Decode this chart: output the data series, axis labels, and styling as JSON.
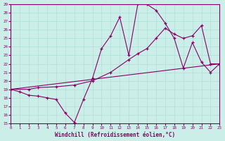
{
  "xlabel": "Windchill (Refroidissement éolien,°C)",
  "bg_color": "#cceee8",
  "line_color": "#880066",
  "xlim": [
    0,
    23
  ],
  "ylim": [
    15,
    29
  ],
  "xticks": [
    0,
    1,
    2,
    3,
    4,
    5,
    6,
    7,
    8,
    9,
    10,
    11,
    12,
    13,
    14,
    15,
    16,
    17,
    18,
    19,
    20,
    21,
    22,
    23
  ],
  "yticks": [
    15,
    16,
    17,
    18,
    19,
    20,
    21,
    22,
    23,
    24,
    25,
    26,
    27,
    28,
    29
  ],
  "series": [
    {
      "x": [
        0,
        1,
        2,
        3,
        4,
        5,
        6,
        7,
        8,
        9,
        10,
        11,
        12,
        13,
        14,
        15,
        16,
        17,
        18,
        19,
        20,
        21,
        22,
        23
      ],
      "y": [
        19.0,
        18.7,
        18.3,
        18.2,
        18.0,
        17.8,
        16.2,
        15.1,
        17.8,
        20.3,
        23.8,
        25.3,
        27.5,
        23.0,
        29.1,
        29.0,
        28.3,
        26.8,
        25.0,
        21.5,
        24.5,
        22.2,
        21.0,
        22.0
      ]
    },
    {
      "x": [
        0,
        2,
        3,
        5,
        7,
        9,
        11,
        13,
        14,
        15,
        16,
        17,
        18,
        19,
        20,
        21,
        22,
        23
      ],
      "y": [
        19.0,
        19.0,
        19.2,
        19.3,
        19.5,
        20.0,
        21.0,
        22.5,
        23.2,
        23.8,
        25.0,
        26.2,
        25.5,
        25.0,
        25.3,
        26.5,
        22.0,
        22.0
      ]
    },
    {
      "x": [
        0,
        23
      ],
      "y": [
        19.0,
        22.0
      ]
    }
  ]
}
